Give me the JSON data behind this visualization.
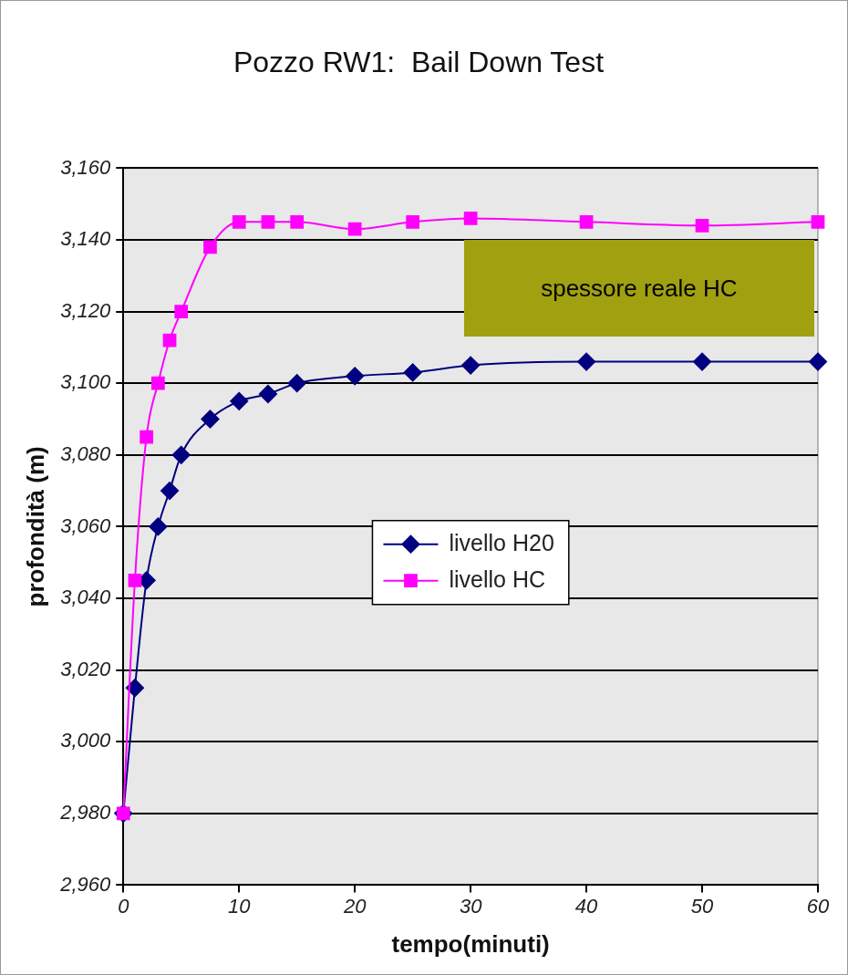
{
  "chart_data": {
    "type": "line",
    "title": "Pozzo RW1:  Bail Down Test",
    "xlabel": "tempo(minuti)",
    "ylabel": "profondità (m)",
    "x": [
      0,
      1,
      2,
      3,
      4,
      5,
      7.5,
      10,
      12.5,
      15,
      20,
      25,
      30,
      40,
      50,
      60
    ],
    "series": [
      {
        "name": "livello H20",
        "color": "#000080",
        "marker": "diamond",
        "values": [
          2980,
          3015,
          3045,
          3060,
          3070,
          3080,
          3090,
          3095,
          3097,
          3100,
          3102,
          3103,
          3105,
          3106,
          3106,
          3106
        ]
      },
      {
        "name": "livello HC",
        "color": "#ff00ff",
        "marker": "square",
        "values": [
          2980,
          3045,
          3085,
          3100,
          3112,
          3120,
          3138,
          3145,
          3145,
          3145,
          3143,
          3145,
          3146,
          3145,
          3144,
          3145
        ]
      }
    ],
    "xlim": [
      0,
      60
    ],
    "xticks": [
      0,
      10,
      20,
      30,
      40,
      50,
      60
    ],
    "ylim": [
      2960,
      3160
    ],
    "yticks": [
      {
        "value": 2960,
        "label": "2,960"
      },
      {
        "value": 2980,
        "label": "2,980"
      },
      {
        "value": 3000,
        "label": "3,000"
      },
      {
        "value": 3020,
        "label": "3,020"
      },
      {
        "value": 3040,
        "label": "3,040"
      },
      {
        "value": 3060,
        "label": "3,060"
      },
      {
        "value": 3080,
        "label": "3,080"
      },
      {
        "value": 3100,
        "label": "3,100"
      },
      {
        "value": 3120,
        "label": "3,120"
      },
      {
        "value": 3140,
        "label": "3,140"
      },
      {
        "value": 3160,
        "label": "3,160"
      }
    ],
    "annotations": [
      "spessore reale HC"
    ],
    "grid": "y",
    "legend": "center",
    "line_style": "solid"
  }
}
